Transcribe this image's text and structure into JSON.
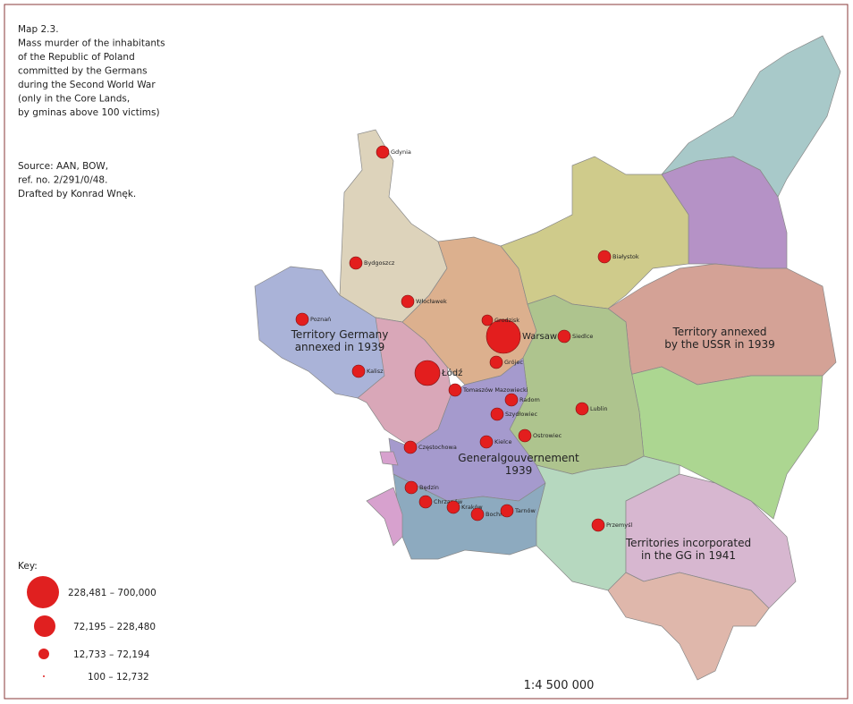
{
  "header": {
    "lines": [
      "Map 2.3.",
      "Mass murder of the inhabitants",
      "of the Republic of Poland",
      "committed by the Germans",
      "during the Second World War",
      "(only in the Core Lands,",
      "by gminas above 100 victims)"
    ]
  },
  "source": {
    "lines": [
      "Source: AAN, BOW,",
      "ref. no. 2/291/0/48.",
      "Drafted by Konrad Wnęk."
    ]
  },
  "regions": [
    {
      "lines": [
        "Territory Germany",
        "annexed in 1939"
      ]
    },
    {
      "lines": [
        "Territory annexed",
        "by the USSR in 1939"
      ]
    },
    {
      "lines": [
        "Generalgouvernement",
        "1939"
      ]
    },
    {
      "lines": [
        "Territories incorporated",
        "in the GG in 1941"
      ]
    }
  ],
  "cities": [
    "Gdynia",
    "Bydgoszcz",
    "Włocławek",
    "Poznań",
    "Kalisz",
    "Łódź",
    "Warsaw",
    "Grodzisk",
    "Grójec",
    "Siedlce",
    "Białystok",
    "Tomaszów Mazowiecki",
    "Radom",
    "Szydłowiec",
    "Lublin",
    "Ostrowiec",
    "Kielce",
    "Częstochowa",
    "Będzin",
    "Chrzanów",
    "Kraków",
    "Bochnia",
    "Tarnów",
    "Przemyśl"
  ],
  "key": {
    "title": "Key:",
    "items": [
      "228,481 – 700,000",
      "72,195 – 228,480",
      "12,733 – 72,194",
      "100 – 12,732"
    ]
  },
  "scale": "1:4 500 000"
}
